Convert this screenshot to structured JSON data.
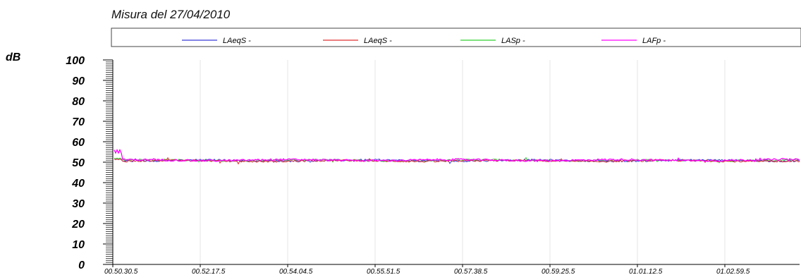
{
  "chart_data": {
    "type": "line",
    "title": "Misura del 27/04/2010",
    "ylabel": "dB",
    "xlabel": "",
    "ylim": [
      0,
      100
    ],
    "yticks": [
      "0",
      "10",
      "20",
      "30",
      "40",
      "50",
      "60",
      "70",
      "80",
      "90",
      "100"
    ],
    "x_tick_labels": [
      "00.50.30.5",
      "00.52.17.5",
      "00.54.04.5",
      "00.55.51.5",
      "00.57.38.5",
      "00.59.25.5",
      "01.01.12.5",
      "01.02.59.5"
    ],
    "x_range": [
      "00.50.30.5",
      "01.04.30.0"
    ],
    "grid": {
      "vertical": true,
      "horizontal": false
    },
    "legend_position": "top",
    "series": [
      {
        "name": "LAeqS -",
        "color": "#3b3bd6",
        "level_db": 50.8,
        "start_peak_db": 51.5
      },
      {
        "name": "LAeqS -",
        "color": "#e03030",
        "level_db": 50.6,
        "start_peak_db": 51.5
      },
      {
        "name": "LASp -",
        "color": "#30d030",
        "level_db": 50.9,
        "start_peak_db": 52.0
      },
      {
        "name": "LAFp -",
        "color": "#ff00ff",
        "level_db": 51.0,
        "start_peak_db": 56.0
      }
    ]
  }
}
